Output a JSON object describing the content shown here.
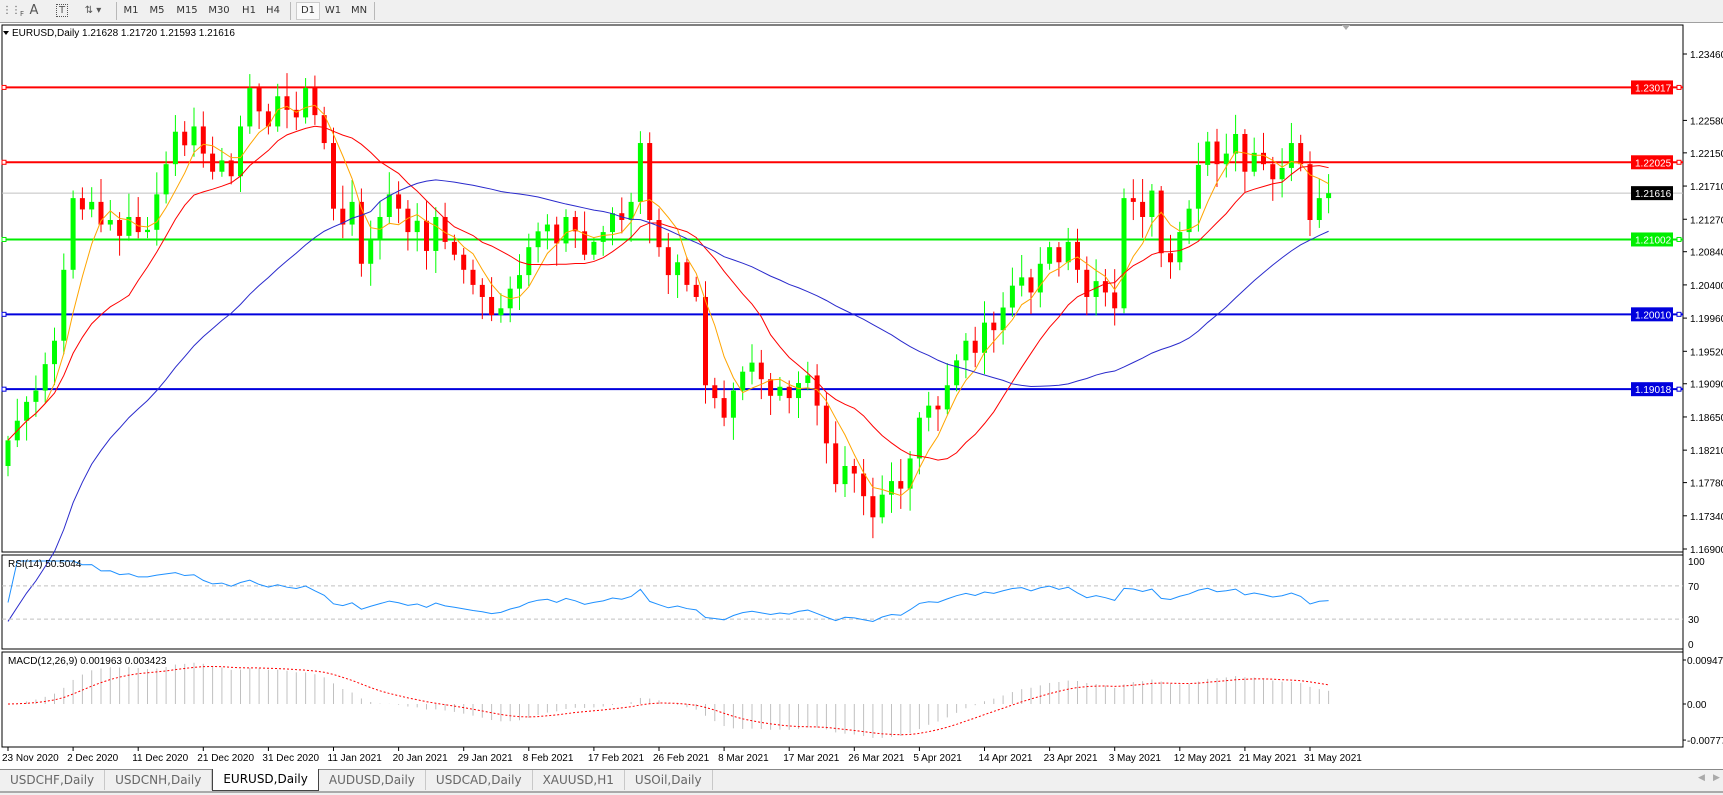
{
  "toolbar": {
    "icons": [
      "fibonacci-icon",
      "text-icon",
      "text-label-icon",
      "arrows-icon"
    ],
    "text_icon_glyph": "A",
    "timeframes": [
      "M1",
      "M5",
      "M15",
      "M30",
      "H1",
      "H4",
      "D1",
      "W1",
      "MN"
    ],
    "active_timeframe": "D1"
  },
  "chart": {
    "header": "EURUSD,Daily  1.21628 1.21720 1.21593 1.21616",
    "colors": {
      "bull": "#00ff00",
      "bear": "#ff0000",
      "ma_fast": "#ffa500",
      "ma_mid": "#ff0000",
      "ma_slow": "#2a2acc",
      "rsi": "#1e90ff",
      "macd_hist": "#c0c0c0",
      "macd_signal": "#ff0000"
    },
    "price_ticks": [
      "1.23460",
      "1.22580",
      "1.22150",
      "1.21710",
      "1.21270",
      "1.20840",
      "1.20400",
      "1.19960",
      "1.19520",
      "1.19090",
      "1.18650",
      "1.18210",
      "1.17780",
      "1.17340",
      "1.16900"
    ],
    "levels": [
      {
        "price": "1.23017",
        "color": "#ff0000"
      },
      {
        "price": "1.22025",
        "color": "#ff0000"
      },
      {
        "price": "1.21002",
        "color": "#00ee00"
      },
      {
        "price": "1.20010",
        "color": "#0000dd"
      },
      {
        "price": "1.19018",
        "color": "#0000dd"
      }
    ],
    "current_price": "1.21616",
    "rsi_label": "RSI(14) 50.5044",
    "rsi_ticks": [
      "100",
      "70",
      "30",
      "0"
    ],
    "macd_label": "MACD(12,26,9) 0.001963 0.003423",
    "macd_ticks": [
      "0.009478",
      "0.00",
      "-0.00777"
    ],
    "dates": [
      "23 Nov 2020",
      "2 Dec 2020",
      "11 Dec 2020",
      "21 Dec 2020",
      "31 Dec 2020",
      "11 Jan 2021",
      "20 Jan 2021",
      "29 Jan 2021",
      "8 Feb 2021",
      "17 Feb 2021",
      "26 Feb 2021",
      "8 Mar 2021",
      "17 Mar 2021",
      "26 Mar 2021",
      "5 Apr 2021",
      "14 Apr 2021",
      "23 Apr 2021",
      "3 May 2021",
      "12 May 2021",
      "21 May 2021",
      "31 May 2021"
    ]
  },
  "chart_data": {
    "type": "candlestick",
    "symbol": "EURUSD",
    "timeframe": "Daily",
    "ylim": [
      1.169,
      1.2346
    ],
    "close": [
      1.1834,
      1.186,
      1.1885,
      1.19,
      1.1935,
      1.1966,
      1.206,
      1.2155,
      1.214,
      1.215,
      1.212,
      1.2126,
      1.2105,
      1.213,
      1.211,
      1.2113,
      1.216,
      1.22,
      1.2243,
      1.2225,
      1.225,
      1.2214,
      1.219,
      1.2205,
      1.2184,
      1.225,
      1.2301,
      1.227,
      1.225,
      1.229,
      1.2272,
      1.2262,
      1.2301,
      1.2265,
      1.2228,
      1.2141,
      1.212,
      1.215,
      1.2068,
      1.21,
      1.213,
      1.216,
      1.2141,
      1.211,
      1.2125,
      1.2085,
      1.213,
      1.2097,
      1.208,
      1.206,
      1.204,
      1.2024,
      1.2,
      1.2009,
      1.2035,
      1.2053,
      1.209,
      1.2111,
      1.212,
      1.2095,
      1.213,
      1.2111,
      1.208,
      1.2097,
      1.211,
      1.2135,
      1.2126,
      1.215,
      1.2228,
      1.2126,
      1.209,
      1.2053,
      1.207,
      1.204,
      1.2024,
      1.1907,
      1.189,
      1.1864,
      1.19,
      1.1925,
      1.1937,
      1.1915,
      1.1893,
      1.1905,
      1.189,
      1.191,
      1.192,
      1.188,
      1.183,
      1.1776,
      1.18,
      1.179,
      1.176,
      1.1732,
      1.1762,
      1.178,
      1.177,
      1.181,
      1.1864,
      1.188,
      1.1875,
      1.1907,
      1.194,
      1.1966,
      1.195,
      1.199,
      1.198,
      1.201,
      1.2039,
      1.205,
      1.203,
      1.2068,
      1.209,
      1.207,
      1.2097,
      1.206,
      1.2024,
      1.2045,
      1.203,
      1.2009,
      1.2155,
      1.215,
      1.213,
      1.2165,
      1.2082,
      1.207,
      1.211,
      1.2141,
      1.2199,
      1.223,
      1.22,
      1.2214,
      1.224,
      1.219,
      1.2215,
      1.22,
      1.218,
      1.2195,
      1.2228,
      1.22,
      1.2126,
      1.2155,
      1.21616
    ]
  },
  "tabs": [
    {
      "label": "USDCHF,Daily"
    },
    {
      "label": "USDCNH,Daily"
    },
    {
      "label": "EURUSD,Daily",
      "active": true
    },
    {
      "label": "AUDUSD,Daily"
    },
    {
      "label": "USDCAD,Daily"
    },
    {
      "label": "XAUUSD,H1"
    },
    {
      "label": "USOil,Daily"
    }
  ]
}
